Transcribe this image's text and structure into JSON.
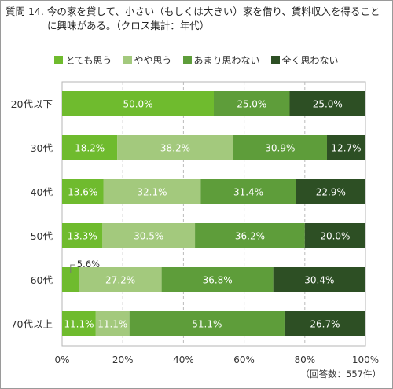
{
  "title_line1": "質問 14. 今の家を貸して、小さい（もしくは大きい）家を借り、賃料収入を得ること",
  "title_line2": "に興味がある。（クロス集計：年代）",
  "footnote": "（回答数：557件）",
  "colors": [
    "#6fbb2e",
    "#a3c97d",
    "#5e9d3a",
    "#2d4f24"
  ],
  "chart_data": {
    "type": "bar",
    "orientation": "horizontal",
    "stacked": true,
    "categories": [
      "20代以下",
      "30代",
      "40代",
      "50代",
      "60代",
      "70代以上"
    ],
    "series": [
      {
        "name": "とても思う",
        "values": [
          50.0,
          18.2,
          13.6,
          13.3,
          5.6,
          11.1
        ]
      },
      {
        "name": "やや思う",
        "values": [
          0,
          38.2,
          32.1,
          30.5,
          27.2,
          11.1
        ]
      },
      {
        "name": "あまり思わない",
        "values": [
          25.0,
          30.9,
          31.4,
          36.2,
          36.8,
          51.1
        ]
      },
      {
        "name": "全く思わない",
        "values": [
          25.0,
          12.7,
          22.9,
          20.0,
          30.4,
          26.7
        ]
      }
    ],
    "xlim": [
      0,
      100
    ],
    "xticks": [
      "0%",
      "20%",
      "40%",
      "60%",
      "80%",
      "100%"
    ],
    "legend_position": "top"
  }
}
